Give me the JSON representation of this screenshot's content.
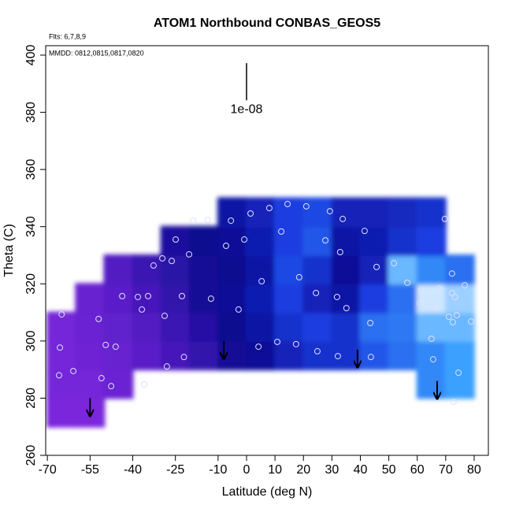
{
  "chart_data": {
    "type": "field",
    "title": "ATOM1 Northbound CONBAS_GEOS5",
    "annotations": [
      "Flts: 6,7,8,9",
      "MMDD: 0812,0815,0817,0820"
    ],
    "x_label": "Latitude (deg N)",
    "y_label": "Theta (C)",
    "xlim": [
      -70.6,
      85
    ],
    "ylim": [
      260,
      403.3
    ],
    "xticks": [
      -70,
      -55,
      -40,
      -25,
      -10,
      0,
      10,
      20,
      30,
      40,
      50,
      60,
      70,
      80
    ],
    "yticks": [
      260,
      280,
      300,
      320,
      340,
      360,
      380,
      400
    ],
    "colorscale": [
      "#9b30f0",
      "#5a1ec8",
      "#0a0a90",
      "#1a3ee0",
      "#3aa0ff",
      "#ffffff"
    ],
    "zlim": [
      0,
      1
    ],
    "field_x": [
      -65,
      -55,
      -45,
      -35,
      -25,
      -15,
      -5,
      5,
      15,
      25,
      35,
      45,
      55,
      65,
      75
    ],
    "field_y": [
      275,
      285,
      295,
      305,
      315,
      325,
      335,
      345
    ],
    "z": [
      [
        0.1,
        0.1,
        null,
        null,
        null,
        null,
        null,
        null,
        null,
        null,
        null,
        null,
        null,
        null,
        null
      ],
      [
        0.12,
        0.12,
        0.15,
        null,
        null,
        null,
        null,
        null,
        null,
        null,
        null,
        null,
        null,
        0.75,
        0.8
      ],
      [
        0.12,
        0.14,
        0.16,
        0.2,
        0.25,
        0.3,
        0.38,
        0.42,
        0.5,
        0.55,
        0.55,
        0.65,
        0.7,
        0.75,
        0.8
      ],
      [
        0.12,
        0.15,
        0.18,
        0.22,
        0.28,
        0.33,
        0.4,
        0.45,
        0.55,
        0.6,
        0.55,
        0.7,
        0.72,
        0.85,
        0.85
      ],
      [
        null,
        0.16,
        0.2,
        0.25,
        0.3,
        0.38,
        0.42,
        0.48,
        0.6,
        0.5,
        0.45,
        0.6,
        0.7,
        0.95,
        0.9
      ],
      [
        null,
        null,
        0.22,
        0.28,
        0.32,
        0.38,
        0.4,
        0.45,
        0.62,
        0.55,
        0.42,
        0.5,
        0.85,
        0.75,
        0.7
      ],
      [
        null,
        null,
        null,
        null,
        0.35,
        0.4,
        0.42,
        0.48,
        0.6,
        0.65,
        0.45,
        0.48,
        0.55,
        0.6,
        null
      ],
      [
        null,
        null,
        null,
        null,
        null,
        null,
        0.45,
        0.5,
        0.6,
        0.62,
        0.5,
        0.5,
        0.52,
        0.55,
        null
      ]
    ],
    "points": {
      "x": [
        -65,
        -65.6,
        -65.9,
        -60.9,
        -52,
        -49.5,
        -46,
        -51,
        -47.6,
        -43.7,
        -38.2,
        -34.6,
        -36.8,
        -36,
        -32.7,
        -29.6,
        -26.3,
        -28.8,
        -22.7,
        -28,
        -22,
        -24.9,
        -18.8,
        -20.2,
        -13.6,
        -12.5,
        -5.5,
        -7.2,
        -2.8,
        -0.8,
        1.4,
        8,
        14.4,
        12.2,
        5.3,
        10.8,
        4.2,
        17.4,
        18.5,
        21,
        29.3,
        27.7,
        24.4,
        24.9,
        32.9,
        31.8,
        33.8,
        35.1,
        32.1,
        41.5,
        45.7,
        43.5,
        43.7,
        51.8,
        56.5,
        61.4,
        60.9,
        65,
        65.6,
        67.8,
        69.7,
        72.2,
        72.2,
        73.3,
        71.1,
        73.9,
        72.5,
        76.7,
        74.5,
        72.8,
        78.9,
        66.4
      ],
      "y": [
        309.3,
        297.7,
        288,
        289.5,
        307.7,
        298.6,
        298,
        287,
        284.2,
        315.7,
        315.4,
        315.7,
        311,
        284.8,
        326.4,
        328.9,
        328,
        308.8,
        315.7,
        291.1,
        294.4,
        335.5,
        342.1,
        330.3,
        342.4,
        314.8,
        342.1,
        333.3,
        311,
        335.5,
        344.6,
        346.5,
        347.9,
        338.3,
        320.9,
        299.7,
        298,
        298.9,
        322.3,
        347.1,
        345.4,
        335.2,
        316.8,
        296.4,
        331.1,
        315.4,
        342.7,
        311.5,
        294.7,
        338.5,
        325.9,
        306.3,
        294.4,
        327.2,
        320.4,
        317.6,
        313.2,
        300.8,
        293.6,
        318.4,
        342.7,
        323.6,
        316.8,
        315.4,
        308.5,
        309,
        306.6,
        319.5,
        288.9,
        278.7,
        306.8,
        311.8
      ]
    },
    "vectors": {
      "x": [
        -55,
        -8,
        39,
        67
      ],
      "y": [
        280,
        300,
        297,
        286
      ],
      "dy": [
        -6.3,
        -6.3,
        -6.3,
        -6.3
      ]
    },
    "vector_scale": {
      "label": "1e-08",
      "x": 0,
      "y": 397.2,
      "dy": -13
    }
  }
}
